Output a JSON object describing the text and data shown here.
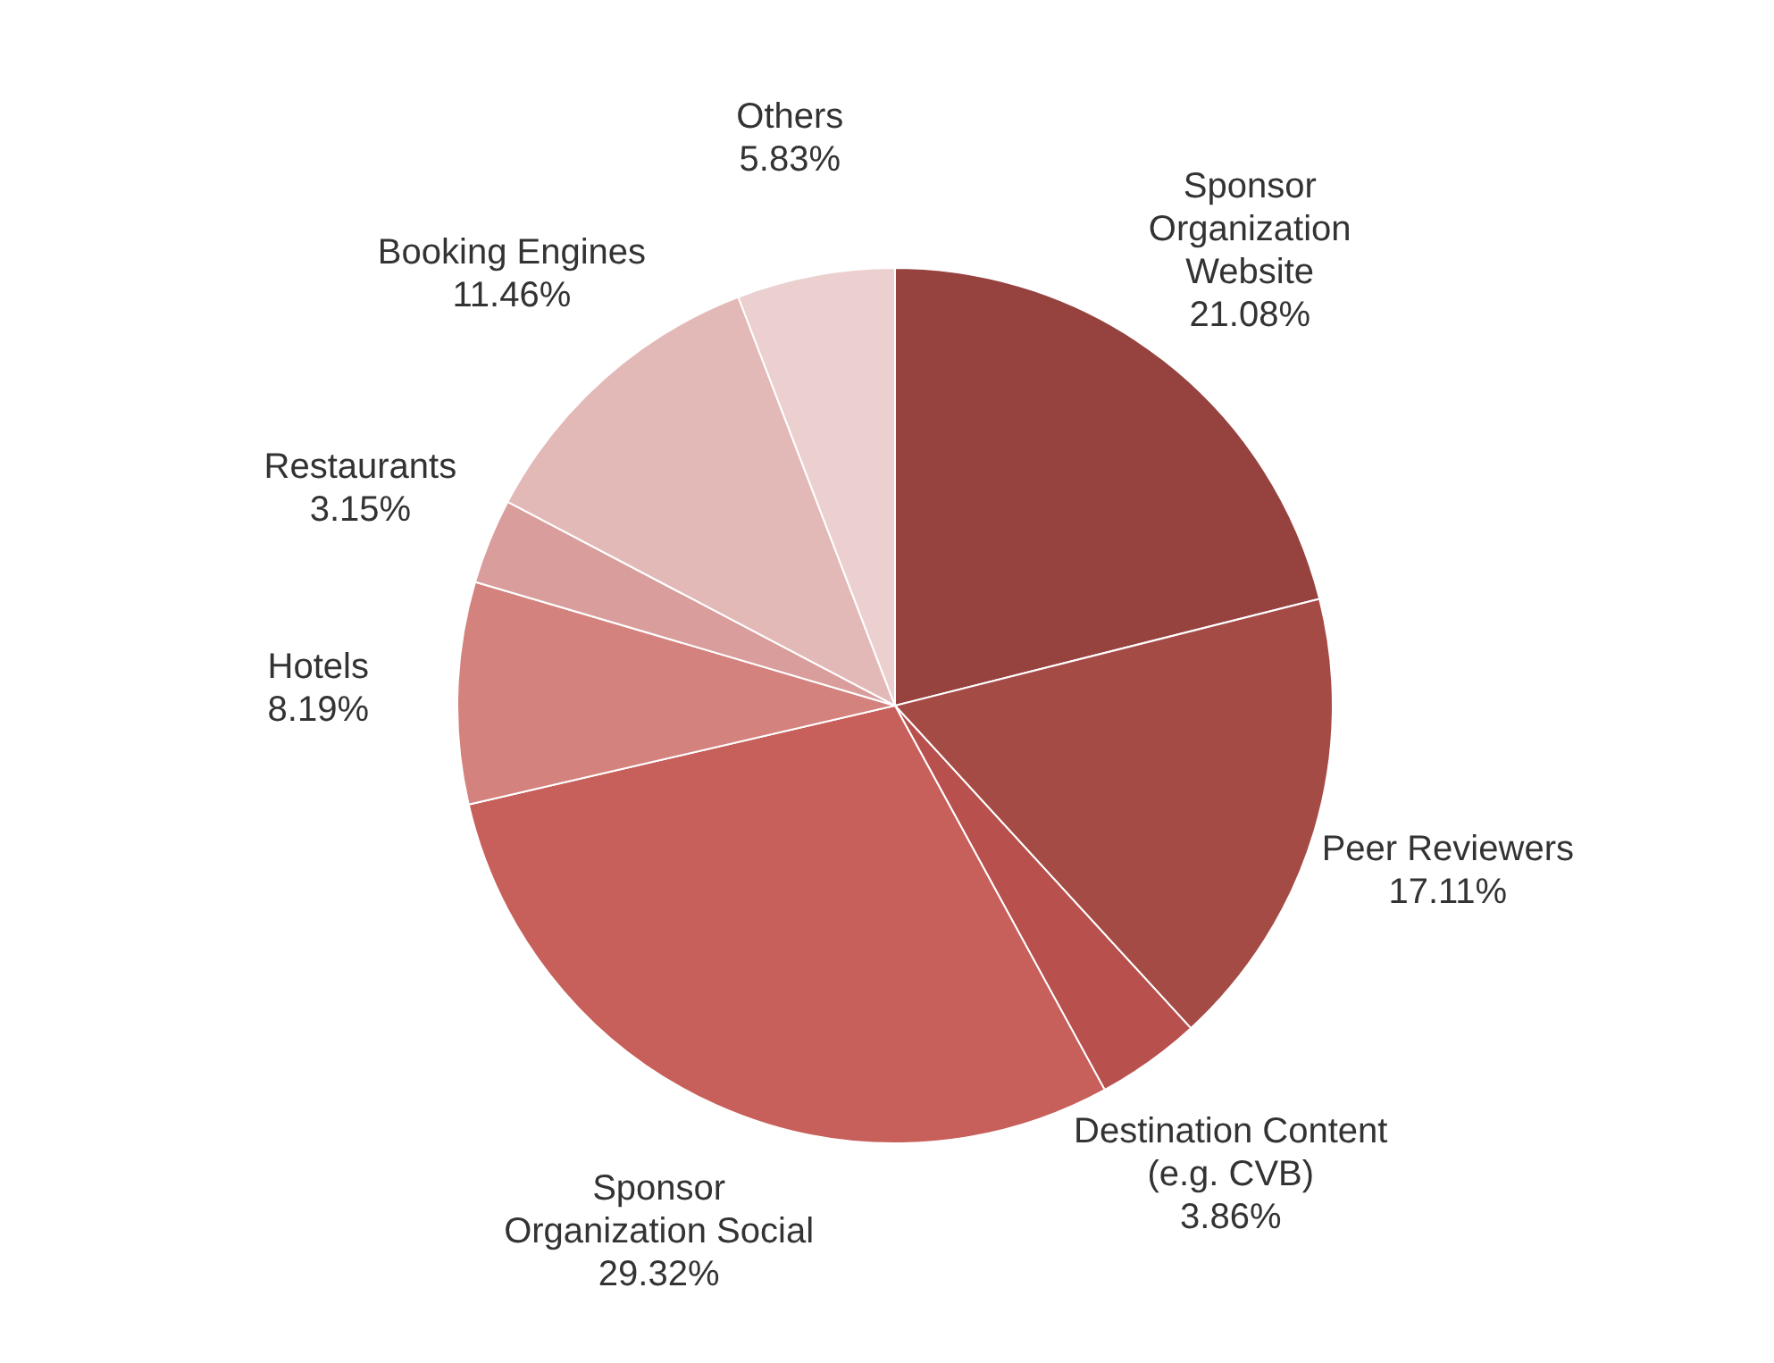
{
  "chart_data": {
    "type": "pie",
    "categories": [
      "Sponsor Organization Website",
      "Peer Reviewers",
      "Destination Content (e.g. CVB)",
      "Sponsor Organization Social",
      "Hotels",
      "Restaurants",
      "Booking Engines",
      "Others"
    ],
    "values": [
      21.08,
      17.11,
      3.86,
      29.32,
      8.19,
      3.15,
      11.46,
      5.83
    ],
    "colors": [
      "#96423f",
      "#a54b46",
      "#b8504d",
      "#c75f5a",
      "#d4827e",
      "#d99d9b",
      "#e3b9b8",
      "#ebd0cf"
    ],
    "value_labels": [
      "21.08%",
      "17.11%",
      "3.86%",
      "29.32%",
      "8.19%",
      "3.15%",
      "11.46%",
      "5.83%"
    ],
    "legend": false
  }
}
